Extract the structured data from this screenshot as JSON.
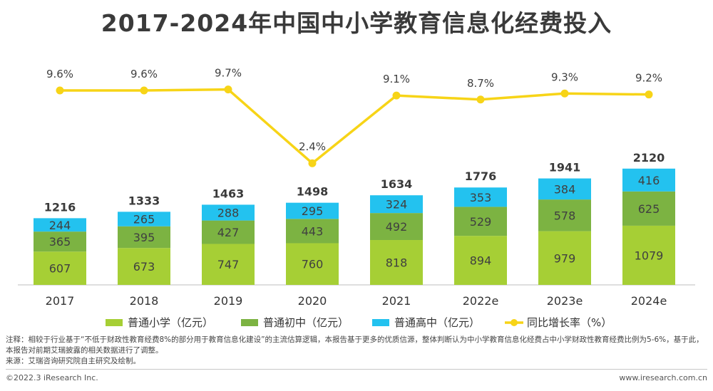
{
  "chart_data": {
    "type": "bar",
    "title": "2017-2024年中国中小学教育信息化经费投入",
    "categories": [
      "2017",
      "2018",
      "2019",
      "2020",
      "2021",
      "2022e",
      "2023e",
      "2024e"
    ],
    "series": [
      {
        "name": "普通小学（亿元）",
        "type": "bar",
        "stack": "total",
        "color": "#a6cf35",
        "values": [
          607,
          673,
          747,
          760,
          818,
          894,
          979,
          1079
        ]
      },
      {
        "name": "普通初中（亿元）",
        "type": "bar",
        "stack": "total",
        "color": "#7cb342",
        "values": [
          365,
          395,
          427,
          443,
          492,
          529,
          578,
          625
        ]
      },
      {
        "name": "普通高中（亿元）",
        "type": "bar",
        "stack": "total",
        "color": "#23c2ef",
        "values": [
          244,
          265,
          288,
          295,
          324,
          353,
          384,
          416
        ]
      },
      {
        "name": "同比增长率（%）",
        "type": "line",
        "color": "#f7d417",
        "values": [
          9.6,
          9.6,
          9.7,
          2.4,
          9.1,
          8.7,
          9.3,
          9.2
        ],
        "labels": [
          "9.6%",
          "9.6%",
          "9.7%",
          "2.4%",
          "9.1%",
          "8.7%",
          "9.3%",
          "9.2%"
        ]
      }
    ],
    "totals": [
      1216,
      1333,
      1463,
      1498,
      1634,
      1776,
      1941,
      2120
    ],
    "legend_position": "bottom",
    "grid": false
  },
  "footer": {
    "note": "注释：相较于行业基于“不低于财政性教育经费8%的部分用于教育信息化建设”的主流估算逻辑，本报告基于更多的优质信源，整体判断认为中小学教育信息化经费占中小学财政性教育经费比例为5-6%，基于此，本报告对前期艾瑞披露的相关数据进行了调整。",
    "source": "来源：艾瑞咨询研究院自主研究及绘制。",
    "copyright": "©2022.3 iResearch Inc.",
    "website": "www.iresearch.com.cn"
  }
}
